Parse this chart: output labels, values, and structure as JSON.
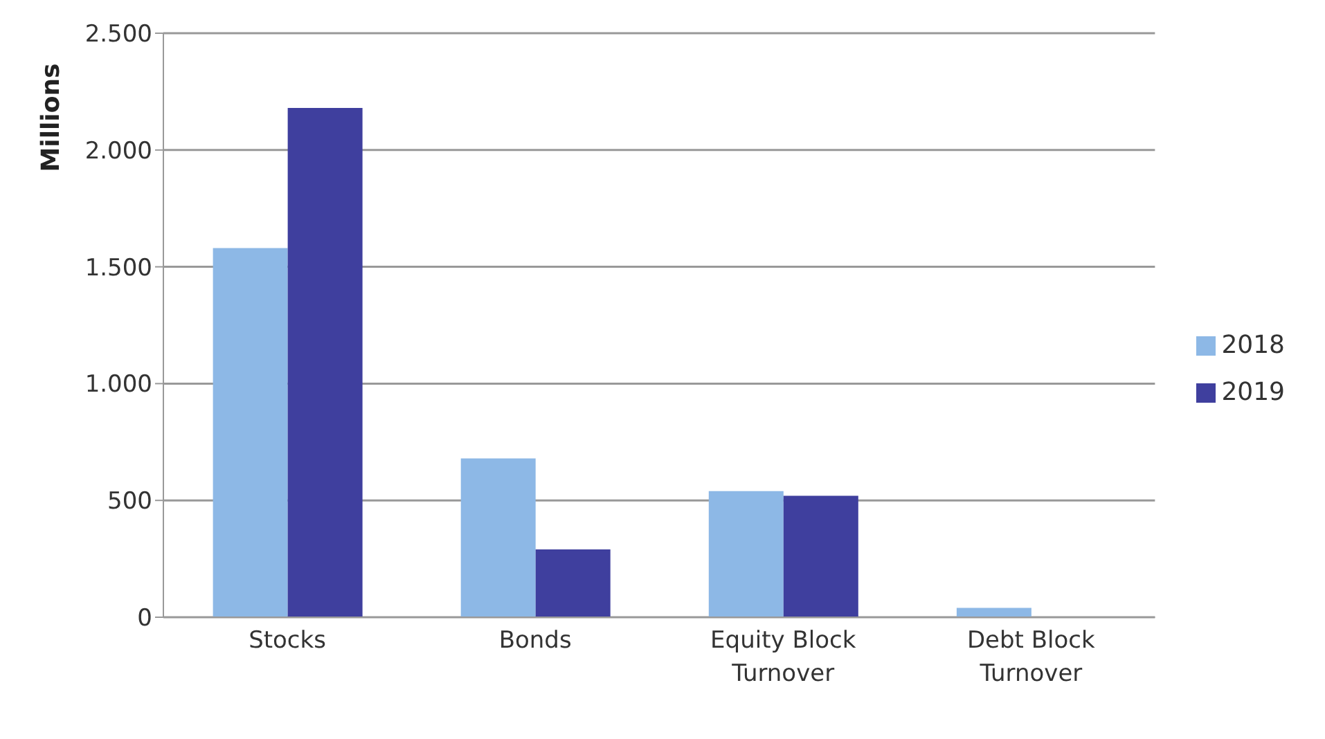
{
  "chart_data": {
    "type": "bar",
    "ylabel": "Millions",
    "categories": [
      "Stocks",
      "Bonds",
      "Equity Block Turnover",
      "Debt Block Turnover"
    ],
    "series": [
      {
        "name": "2018",
        "color": "#8db8e6",
        "values": [
          1580,
          680,
          540,
          40
        ]
      },
      {
        "name": "2019",
        "color": "#3f3f9e",
        "values": [
          2180,
          290,
          520,
          0
        ]
      }
    ],
    "ylim": [
      0,
      2500
    ],
    "yticks": [
      {
        "value": 0,
        "label": "0"
      },
      {
        "value": 500,
        "label": "500"
      },
      {
        "value": 1000,
        "label": "1.000"
      },
      {
        "value": 1500,
        "label": "1.500"
      },
      {
        "value": 2000,
        "label": "2.000"
      },
      {
        "value": 2500,
        "label": "2.500"
      }
    ],
    "grid": "y",
    "legend": "right"
  }
}
